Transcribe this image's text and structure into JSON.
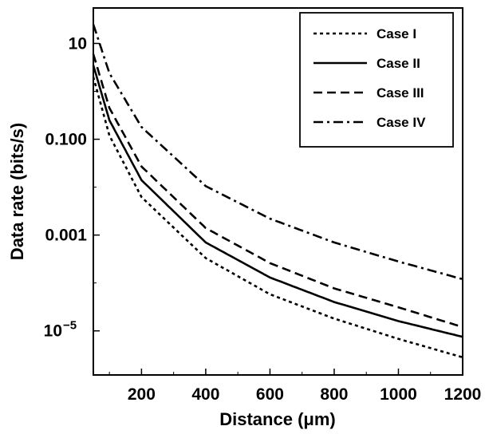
{
  "chart_data": {
    "type": "line",
    "xlabel": "Distance (μm)",
    "ylabel": "Data rate (bits/s)",
    "xlim": [
      50,
      1200
    ],
    "ylim": [
      1.2e-06,
      55
    ],
    "yscale": "log",
    "grid": false,
    "legend_position": "top-right",
    "x_ticks": [
      {
        "value": 200,
        "label": "200"
      },
      {
        "value": 400,
        "label": "400"
      },
      {
        "value": 600,
        "label": "600"
      },
      {
        "value": 800,
        "label": "800"
      },
      {
        "value": 1000,
        "label": "1000"
      },
      {
        "value": 1200,
        "label": "1200"
      }
    ],
    "y_ticks": [
      {
        "value": 10,
        "label": "10",
        "sup": ""
      },
      {
        "value": 0.1,
        "label": "0.100",
        "sup": ""
      },
      {
        "value": 0.001,
        "label": "0.001",
        "sup": ""
      },
      {
        "value": 1e-05,
        "label": "10",
        "sup": "−5"
      }
    ],
    "x": [
      50,
      100,
      200,
      400,
      600,
      800,
      1000,
      1200
    ],
    "series": [
      {
        "name": "Case I",
        "dash": "dotted",
        "values": [
          2.0,
          0.12,
          0.0062,
          0.00033,
          5.8e-05,
          1.8e-05,
          6.8e-06,
          2.8e-06
        ]
      },
      {
        "name": "Case II",
        "dash": "solid",
        "values": [
          3.5,
          0.25,
          0.014,
          0.0007,
          0.00013,
          4e-05,
          1.6e-05,
          7.5e-06
        ]
      },
      {
        "name": "Case III",
        "dash": "dashed",
        "values": [
          6.0,
          0.45,
          0.027,
          0.0014,
          0.00026,
          7.7e-05,
          3.1e-05,
          1.2e-05
        ]
      },
      {
        "name": "Case IV",
        "dash": "dashdot",
        "values": [
          25,
          2.4,
          0.18,
          0.0105,
          0.0022,
          0.0007,
          0.00028,
          0.00012
        ]
      }
    ]
  }
}
